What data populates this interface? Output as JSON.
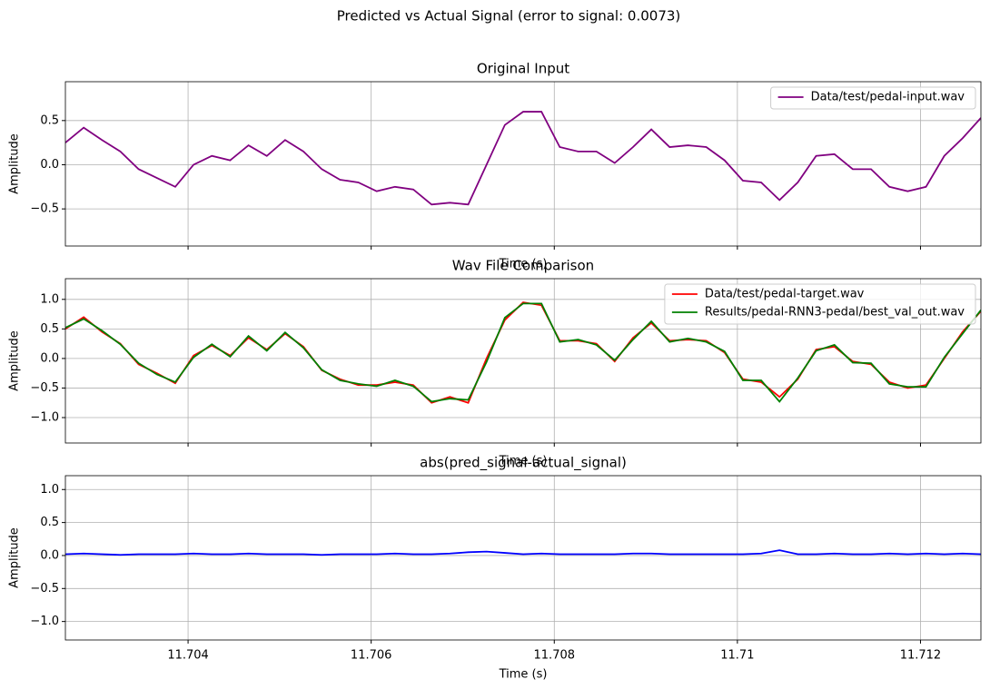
{
  "title": "Predicted vs Actual Signal (error to signal: 0.0073)",
  "sharex": true,
  "chart_data": [
    {
      "type": "line",
      "title": "Original Input",
      "xlabel": "Time (s)",
      "ylabel": "Amplitude",
      "x": [
        11.70266,
        11.70286,
        11.70306,
        11.70326,
        11.70346,
        11.70366,
        11.70386,
        11.70406,
        11.70426,
        11.70446,
        11.70466,
        11.70486,
        11.70506,
        11.70526,
        11.70546,
        11.70566,
        11.70586,
        11.70606,
        11.70626,
        11.70646,
        11.70666,
        11.70686,
        11.70706,
        11.70726,
        11.70746,
        11.70766,
        11.70786,
        11.70806,
        11.70826,
        11.70846,
        11.70866,
        11.70886,
        11.70906,
        11.70926,
        11.70946,
        11.70966,
        11.70986,
        11.71006,
        11.71026,
        11.71046,
        11.71066,
        11.71086,
        11.71106,
        11.71126,
        11.71146,
        11.71166,
        11.71186,
        11.71206,
        11.71226,
        11.71246,
        11.71266
      ],
      "series": [
        {
          "name": "Data/test/pedal-input.wav",
          "color": "#800080",
          "values": [
            0.25,
            0.42,
            0.28,
            0.15,
            -0.05,
            -0.15,
            -0.25,
            0.0,
            0.1,
            0.05,
            0.22,
            0.1,
            0.28,
            0.15,
            -0.05,
            -0.17,
            -0.2,
            -0.3,
            -0.25,
            -0.28,
            -0.45,
            -0.43,
            -0.45,
            0.0,
            0.45,
            0.6,
            0.6,
            0.2,
            0.15,
            0.15,
            0.02,
            0.2,
            0.4,
            0.2,
            0.22,
            0.2,
            0.05,
            -0.18,
            -0.2,
            -0.4,
            -0.2,
            0.1,
            0.12,
            -0.05,
            -0.05,
            -0.25,
            -0.3,
            -0.25,
            0.1,
            0.3,
            0.53
          ]
        }
      ],
      "xlim": [
        11.70266,
        11.71266
      ],
      "ylim": [
        -0.92,
        0.94
      ],
      "xticks": [
        11.704,
        11.706,
        11.708,
        11.71,
        11.712
      ],
      "xtick_labels_override": null,
      "yticks": [
        {
          "value": -0.5,
          "label": "−0.5"
        },
        {
          "value": 0,
          "label": "0.0"
        },
        0.5
      ],
      "grid": true,
      "legend": "upper right"
    },
    {
      "type": "line",
      "title": "Wav File Comparison",
      "xlabel": "Time (s)",
      "ylabel": "Amplitude",
      "x": [
        11.70266,
        11.70286,
        11.70306,
        11.70326,
        11.70346,
        11.70366,
        11.70386,
        11.70406,
        11.70426,
        11.70446,
        11.70466,
        11.70486,
        11.70506,
        11.70526,
        11.70546,
        11.70566,
        11.70586,
        11.70606,
        11.70626,
        11.70646,
        11.70666,
        11.70686,
        11.70706,
        11.70726,
        11.70746,
        11.70766,
        11.70786,
        11.70806,
        11.70826,
        11.70846,
        11.70866,
        11.70886,
        11.70906,
        11.70926,
        11.70946,
        11.70966,
        11.70986,
        11.71006,
        11.71026,
        11.71046,
        11.71066,
        11.71086,
        11.71106,
        11.71126,
        11.71146,
        11.71166,
        11.71186,
        11.71206,
        11.71226,
        11.71246,
        11.71266
      ],
      "series": [
        {
          "name": "Data/test/pedal-target.wav",
          "color": "#ff0000",
          "values": [
            0.5,
            0.7,
            0.45,
            0.25,
            -0.1,
            -0.25,
            -0.42,
            0.05,
            0.22,
            0.05,
            0.35,
            0.15,
            0.42,
            0.2,
            -0.2,
            -0.35,
            -0.45,
            -0.45,
            -0.4,
            -0.45,
            -0.75,
            -0.65,
            -0.75,
            0.0,
            0.65,
            0.95,
            0.9,
            0.3,
            0.3,
            0.25,
            -0.05,
            0.35,
            0.6,
            0.3,
            0.32,
            0.3,
            0.1,
            -0.35,
            -0.4,
            -0.65,
            -0.35,
            0.15,
            0.2,
            -0.05,
            -0.1,
            -0.4,
            -0.5,
            -0.45,
            0.0,
            0.45,
            0.8
          ]
        },
        {
          "name": "Results/pedal-RNN3-pedal/best_val_out.wav",
          "color": "#008000",
          "values": [
            0.52,
            0.67,
            0.47,
            0.24,
            -0.08,
            -0.27,
            -0.4,
            0.02,
            0.24,
            0.03,
            0.38,
            0.13,
            0.44,
            0.18,
            -0.19,
            -0.37,
            -0.43,
            -0.47,
            -0.37,
            -0.47,
            -0.73,
            -0.68,
            -0.7,
            -0.06,
            0.69,
            0.93,
            0.93,
            0.28,
            0.32,
            0.23,
            -0.03,
            0.32,
            0.63,
            0.28,
            0.34,
            0.28,
            0.12,
            -0.37,
            -0.37,
            -0.73,
            -0.33,
            0.13,
            0.23,
            -0.07,
            -0.08,
            -0.43,
            -0.48,
            -0.48,
            0.02,
            0.42,
            0.82
          ]
        }
      ],
      "xlim": [
        11.70266,
        11.71266
      ],
      "ylim": [
        -1.43,
        1.35
      ],
      "xticks": [
        11.704,
        11.706,
        11.708,
        11.71,
        11.712
      ],
      "yticks": [
        {
          "value": -1,
          "label": "−1.0"
        },
        {
          "value": -0.5,
          "label": "−0.5"
        },
        {
          "value": 0,
          "label": "0.0"
        },
        0.5,
        {
          "value": 1,
          "label": "1.0"
        }
      ],
      "grid": true,
      "legend": "upper right"
    },
    {
      "type": "line",
      "title": "abs(pred_signal-actual_signal)",
      "xlabel": "Time (s)",
      "ylabel": "Amplitude",
      "x": [
        11.70266,
        11.70286,
        11.70306,
        11.70326,
        11.70346,
        11.70366,
        11.70386,
        11.70406,
        11.70426,
        11.70446,
        11.70466,
        11.70486,
        11.70506,
        11.70526,
        11.70546,
        11.70566,
        11.70586,
        11.70606,
        11.70626,
        11.70646,
        11.70666,
        11.70686,
        11.70706,
        11.70726,
        11.70746,
        11.70766,
        11.70786,
        11.70806,
        11.70826,
        11.70846,
        11.70866,
        11.70886,
        11.70906,
        11.70926,
        11.70946,
        11.70966,
        11.70986,
        11.71006,
        11.71026,
        11.71046,
        11.71066,
        11.71086,
        11.71106,
        11.71126,
        11.71146,
        11.71166,
        11.71186,
        11.71206,
        11.71226,
        11.71246,
        11.71266
      ],
      "series": [
        {
          "color": "#0000ff",
          "values": [
            0.02,
            0.03,
            0.02,
            0.01,
            0.02,
            0.02,
            0.02,
            0.03,
            0.02,
            0.02,
            0.03,
            0.02,
            0.02,
            0.02,
            0.01,
            0.02,
            0.02,
            0.02,
            0.03,
            0.02,
            0.02,
            0.03,
            0.05,
            0.06,
            0.04,
            0.02,
            0.03,
            0.02,
            0.02,
            0.02,
            0.02,
            0.03,
            0.03,
            0.02,
            0.02,
            0.02,
            0.02,
            0.02,
            0.03,
            0.08,
            0.02,
            0.02,
            0.03,
            0.02,
            0.02,
            0.03,
            0.02,
            0.03,
            0.02,
            0.03,
            0.02
          ]
        }
      ],
      "xlim": [
        11.70266,
        11.71266
      ],
      "ylim": [
        -1.28,
        1.21
      ],
      "xticks": [
        11.704,
        11.706,
        11.708,
        11.71,
        11.712
      ],
      "yticks": [
        {
          "value": -1,
          "label": "−1.0"
        },
        {
          "value": -0.5,
          "label": "−0.5"
        },
        {
          "value": 0,
          "label": "0.0"
        },
        0.5,
        {
          "value": 1,
          "label": "1.0"
        }
      ],
      "grid": true
    }
  ]
}
